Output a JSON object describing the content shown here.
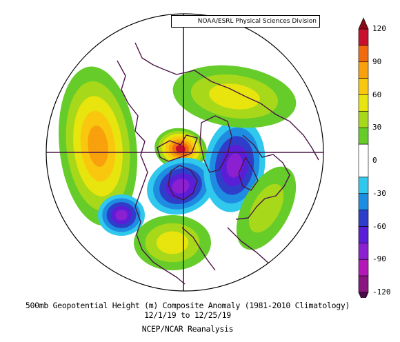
{
  "credit": "NOAA/ESRL Physical Sciences Division",
  "caption": {
    "title": "500mb Geopotential Height (m) Composite Anomaly (1981-2010 Climatology)",
    "dates": "12/1/19  to 12/25/19",
    "source": "NCEP/NCAR Reanalysis"
  },
  "colorbar": {
    "min": -120,
    "max": 120,
    "tick_labels": [
      "120",
      "90",
      "60",
      "30",
      "0",
      "-30",
      "-60",
      "-90",
      "-120"
    ],
    "tick_values": [
      120,
      90,
      60,
      30,
      0,
      -30,
      -60,
      -90,
      -120
    ],
    "levels": [
      {
        "lo": 105,
        "hi": 120,
        "color": "#c8102e"
      },
      {
        "lo": 90,
        "hi": 105,
        "color": "#f06a10"
      },
      {
        "lo": 75,
        "hi": 90,
        "color": "#f8a10c"
      },
      {
        "lo": 60,
        "hi": 75,
        "color": "#f9c80e"
      },
      {
        "lo": 45,
        "hi": 60,
        "color": "#e8e40e"
      },
      {
        "lo": 30,
        "hi": 45,
        "color": "#a8d81a"
      },
      {
        "lo": 15,
        "hi": 30,
        "color": "#66cc2a"
      },
      {
        "lo": -15,
        "hi": 15,
        "color": "#ffffff"
      },
      {
        "lo": -30,
        "hi": -15,
        "color": "#30c8ec"
      },
      {
        "lo": -45,
        "hi": -30,
        "color": "#1e8ce0"
      },
      {
        "lo": -60,
        "hi": -45,
        "color": "#2e3ec8"
      },
      {
        "lo": -75,
        "hi": -60,
        "color": "#5a1ed6"
      },
      {
        "lo": -90,
        "hi": -75,
        "color": "#8a20d0"
      },
      {
        "lo": -105,
        "hi": -90,
        "color": "#b218b8"
      },
      {
        "lo": -120,
        "hi": -105,
        "color": "#8a1480"
      }
    ],
    "top_arrow_color": "#8a0a14",
    "bottom_arrow_color": "#4a0a48"
  },
  "map": {
    "projection": "north-polar-stereographic",
    "border_color": "#000000",
    "coastline_color": "#4a1446",
    "features": [
      {
        "name": "north-pacific-ridge",
        "value": 90
      },
      {
        "name": "arctic-pole-high",
        "value": 120
      },
      {
        "name": "eastern-canada-low",
        "value": -90
      },
      {
        "name": "north-atlantic-scandinavia-low",
        "value": -90
      },
      {
        "name": "gulf-of-alaska-low",
        "value": -90
      },
      {
        "name": "siberia-ridge",
        "value": 60
      },
      {
        "name": "southern-us-ridge",
        "value": 60
      },
      {
        "name": "central-asia-ridge",
        "value": 45
      }
    ]
  }
}
